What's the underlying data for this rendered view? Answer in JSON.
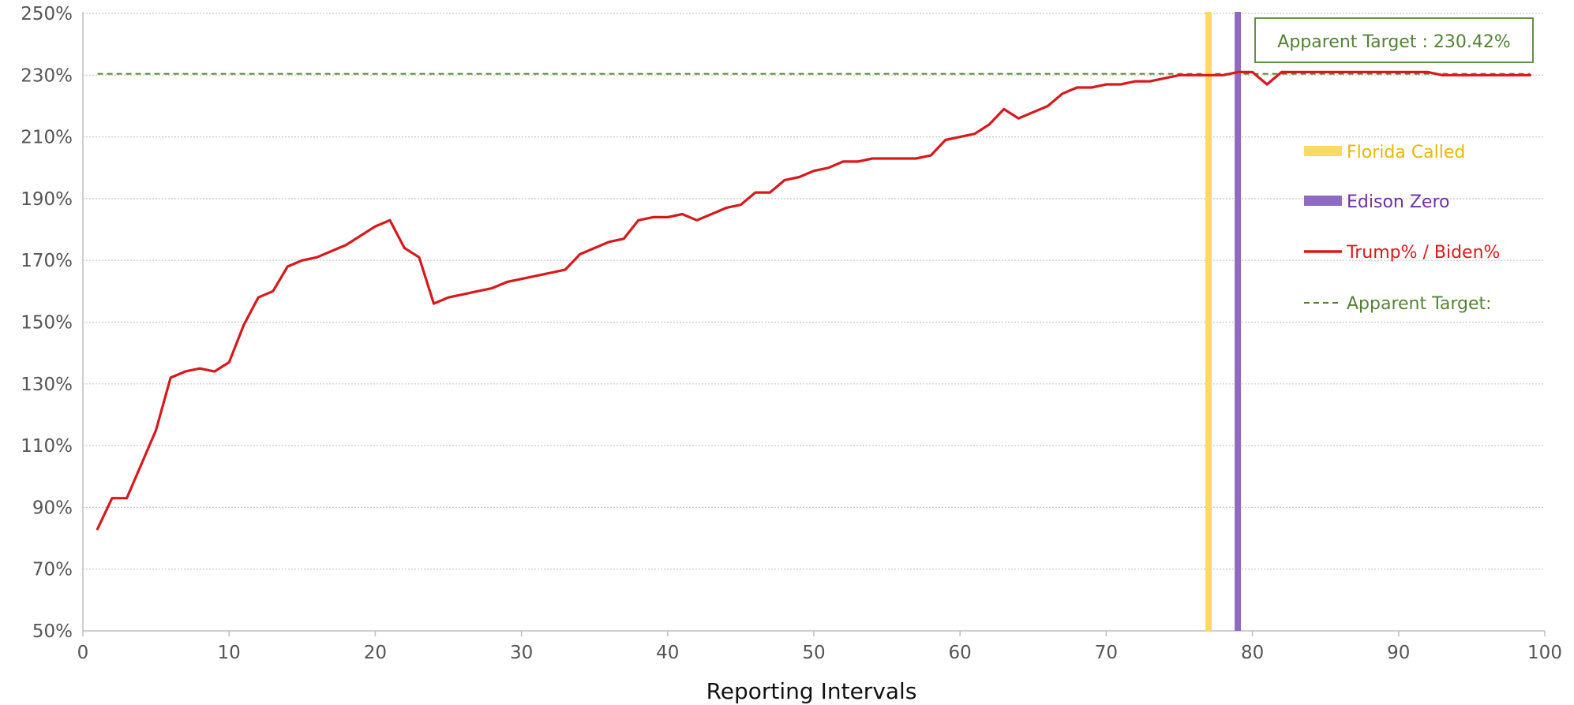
{
  "chart_data": {
    "type": "line",
    "title": "",
    "xlabel": "Reporting Intervals",
    "ylabel": "",
    "xlim": [
      0,
      100
    ],
    "ylim": [
      50,
      250
    ],
    "x_ticks": [
      0,
      10,
      20,
      30,
      40,
      50,
      60,
      70,
      80,
      90,
      100
    ],
    "y_ticks": [
      50,
      70,
      90,
      110,
      130,
      150,
      170,
      190,
      210,
      230,
      250
    ],
    "y_tick_labels": [
      "50%",
      "70%",
      "90%",
      "110%",
      "130%",
      "150%",
      "170%",
      "190%",
      "210%",
      "230%",
      "250%"
    ],
    "grid": "horizontal dotted",
    "legend_position": "right",
    "series": [
      {
        "name": "Trump% / Biden%",
        "color": "#d7191c",
        "style": "solid",
        "x": [
          1,
          2,
          3,
          4,
          5,
          6,
          7,
          8,
          9,
          10,
          11,
          12,
          13,
          14,
          15,
          16,
          17,
          18,
          19,
          20,
          21,
          22,
          23,
          24,
          25,
          26,
          27,
          28,
          29,
          30,
          31,
          32,
          33,
          34,
          35,
          36,
          37,
          38,
          39,
          40,
          41,
          42,
          43,
          44,
          45,
          46,
          47,
          48,
          49,
          50,
          51,
          52,
          53,
          54,
          55,
          56,
          57,
          58,
          59,
          60,
          61,
          62,
          63,
          64,
          65,
          66,
          67,
          68,
          69,
          70,
          71,
          72,
          73,
          74,
          75,
          76,
          77,
          78,
          79,
          80,
          81,
          82,
          83,
          84,
          85,
          86,
          87,
          88,
          89,
          90,
          91,
          92,
          93,
          94,
          95,
          96,
          97,
          98,
          99
        ],
        "values": [
          83,
          93,
          93,
          104,
          115,
          132,
          134,
          135,
          134,
          137,
          149,
          158,
          160,
          168,
          170,
          171,
          173,
          175,
          178,
          181,
          183,
          174,
          171,
          156,
          158,
          159,
          160,
          161,
          163,
          164,
          165,
          166,
          167,
          172,
          174,
          176,
          177,
          183,
          184,
          184,
          185,
          183,
          185,
          187,
          188,
          192,
          192,
          196,
          197,
          199,
          200,
          202,
          202,
          203,
          203,
          203,
          203,
          204,
          209,
          210,
          211,
          214,
          219,
          216,
          218,
          220,
          224,
          226,
          226,
          227,
          227,
          228,
          228,
          229,
          230,
          230,
          230,
          230,
          231,
          231,
          227,
          231,
          231,
          231,
          231,
          231,
          231,
          231,
          231,
          231,
          231,
          231,
          230,
          230,
          230,
          230,
          230,
          230,
          230
        ]
      },
      {
        "name": "Apparent  Target:",
        "color": "#548235",
        "style": "dashed",
        "value": 230.42
      }
    ],
    "vertical_markers": [
      {
        "name": "Florida Called",
        "x": 77,
        "color": "#ffd966"
      },
      {
        "name": "Edison Zero",
        "x": 79,
        "color": "#8e6bbf"
      }
    ],
    "annotations": [
      {
        "text": "Apparent Target : 230.42%",
        "color": "#548235"
      }
    ]
  }
}
